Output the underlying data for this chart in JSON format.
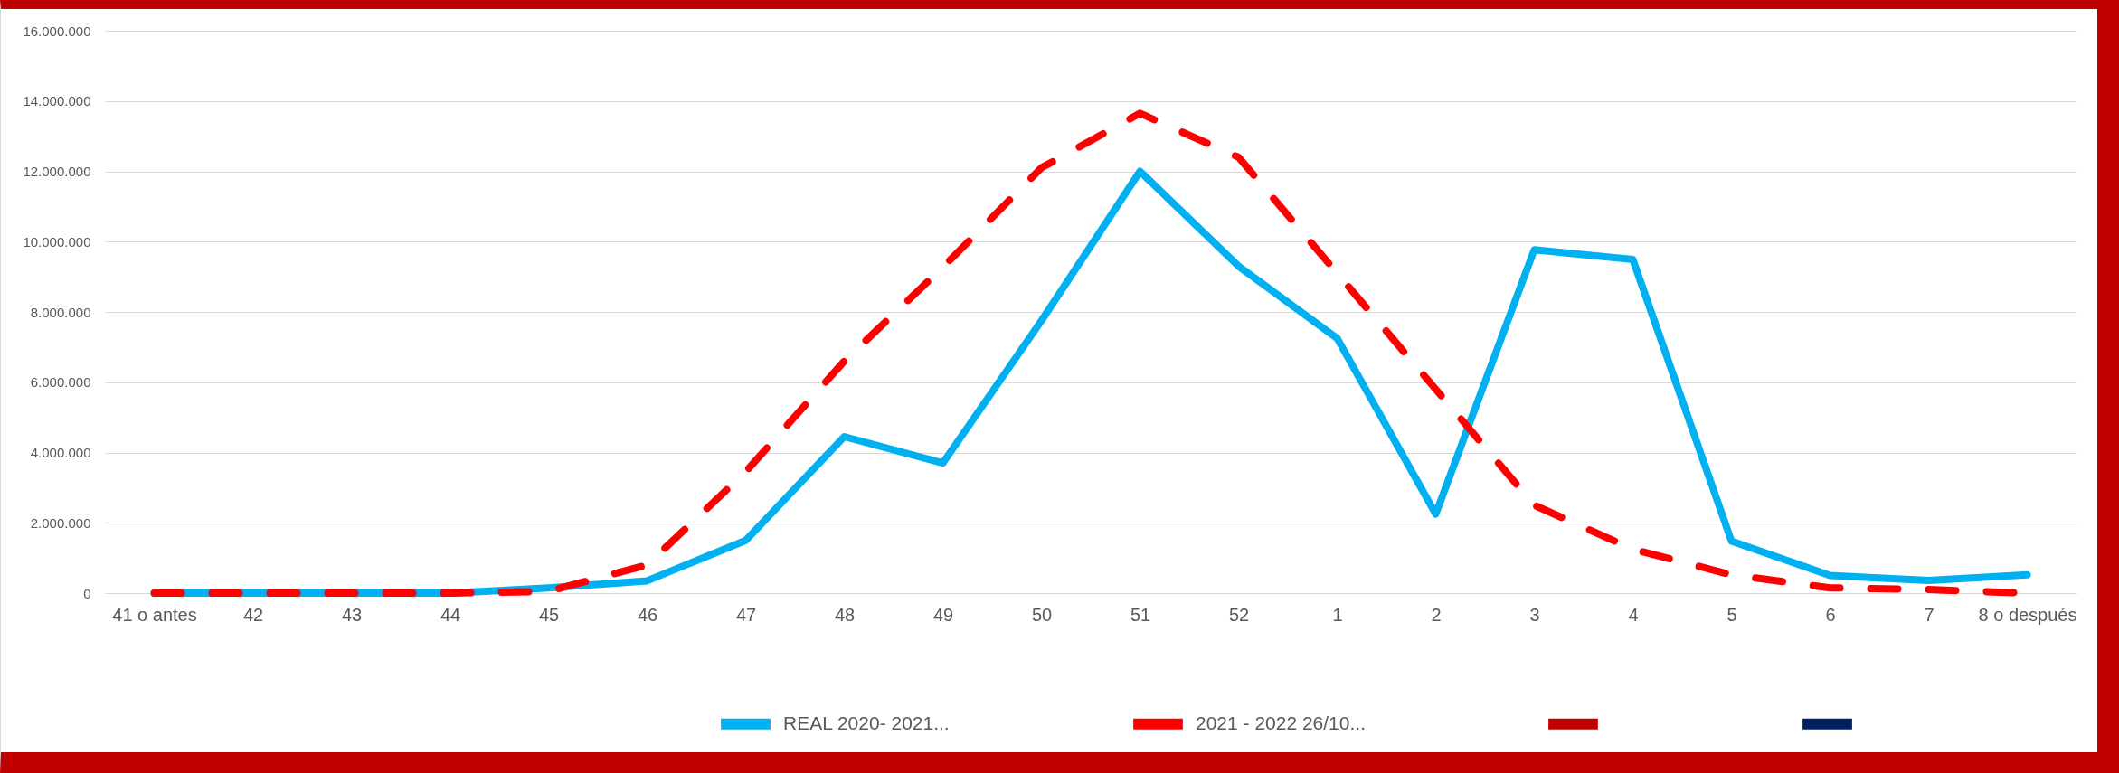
{
  "chart_data": {
    "type": "line",
    "categories": [
      "41 o antes",
      "42",
      "43",
      "44",
      "45",
      "46",
      "47",
      "48",
      "49",
      "50",
      "51",
      "52",
      "1",
      "2",
      "3",
      "4",
      "5",
      "6",
      "7",
      "8 o después"
    ],
    "series": [
      {
        "name": "REAL 2020- 2021...",
        "color": "#00b0f0",
        "values": [
          0,
          0,
          0,
          0,
          150000,
          350000,
          1500000,
          4450000,
          3700000,
          7750000,
          12000000,
          9300000,
          7250000,
          2250000,
          9770000,
          9490000,
          1480000,
          500000,
          360000,
          520000
        ]
      },
      {
        "name": "2021 - 2022 26/10...",
        "color": "#ff0000",
        "line_style": "dashed",
        "values": [
          0,
          0,
          0,
          0,
          50000,
          800000,
          3450000,
          6600000,
          9270000,
          12100000,
          13650000,
          12400000,
          9100000,
          5800000,
          2500000,
          1250000,
          520000,
          150000,
          100000,
          0
        ]
      },
      {
        "color": "#c00000",
        "values": [
          null,
          null,
          null,
          null,
          null,
          null,
          null,
          null,
          null,
          null,
          null,
          null,
          null,
          null,
          null,
          null,
          null,
          null,
          null,
          null
        ]
      },
      {
        "color": "#002060",
        "values": [
          null,
          null,
          null,
          null,
          null,
          null,
          null,
          null,
          null,
          null,
          null,
          null,
          null,
          null,
          null,
          null,
          null,
          null,
          null,
          null
        ]
      }
    ],
    "ylim": [
      0,
      16000000
    ],
    "yticks": [
      0,
      {
        "value": 2000000,
        "label": "2.000.000"
      },
      {
        "value": 4000000,
        "label": "4.000.000"
      },
      {
        "value": 6000000,
        "label": "6.000.000"
      },
      {
        "value": 8000000,
        "label": "8.000.000"
      },
      {
        "value": 10000000,
        "label": "10.000.000"
      },
      {
        "value": 12000000,
        "label": "12.000.000"
      },
      {
        "value": 14000000,
        "label": "14.000.000"
      },
      {
        "value": 16000000,
        "label": "16.000.000"
      }
    ],
    "grid": "y",
    "legend": "bottom",
    "line_style": "solid"
  }
}
